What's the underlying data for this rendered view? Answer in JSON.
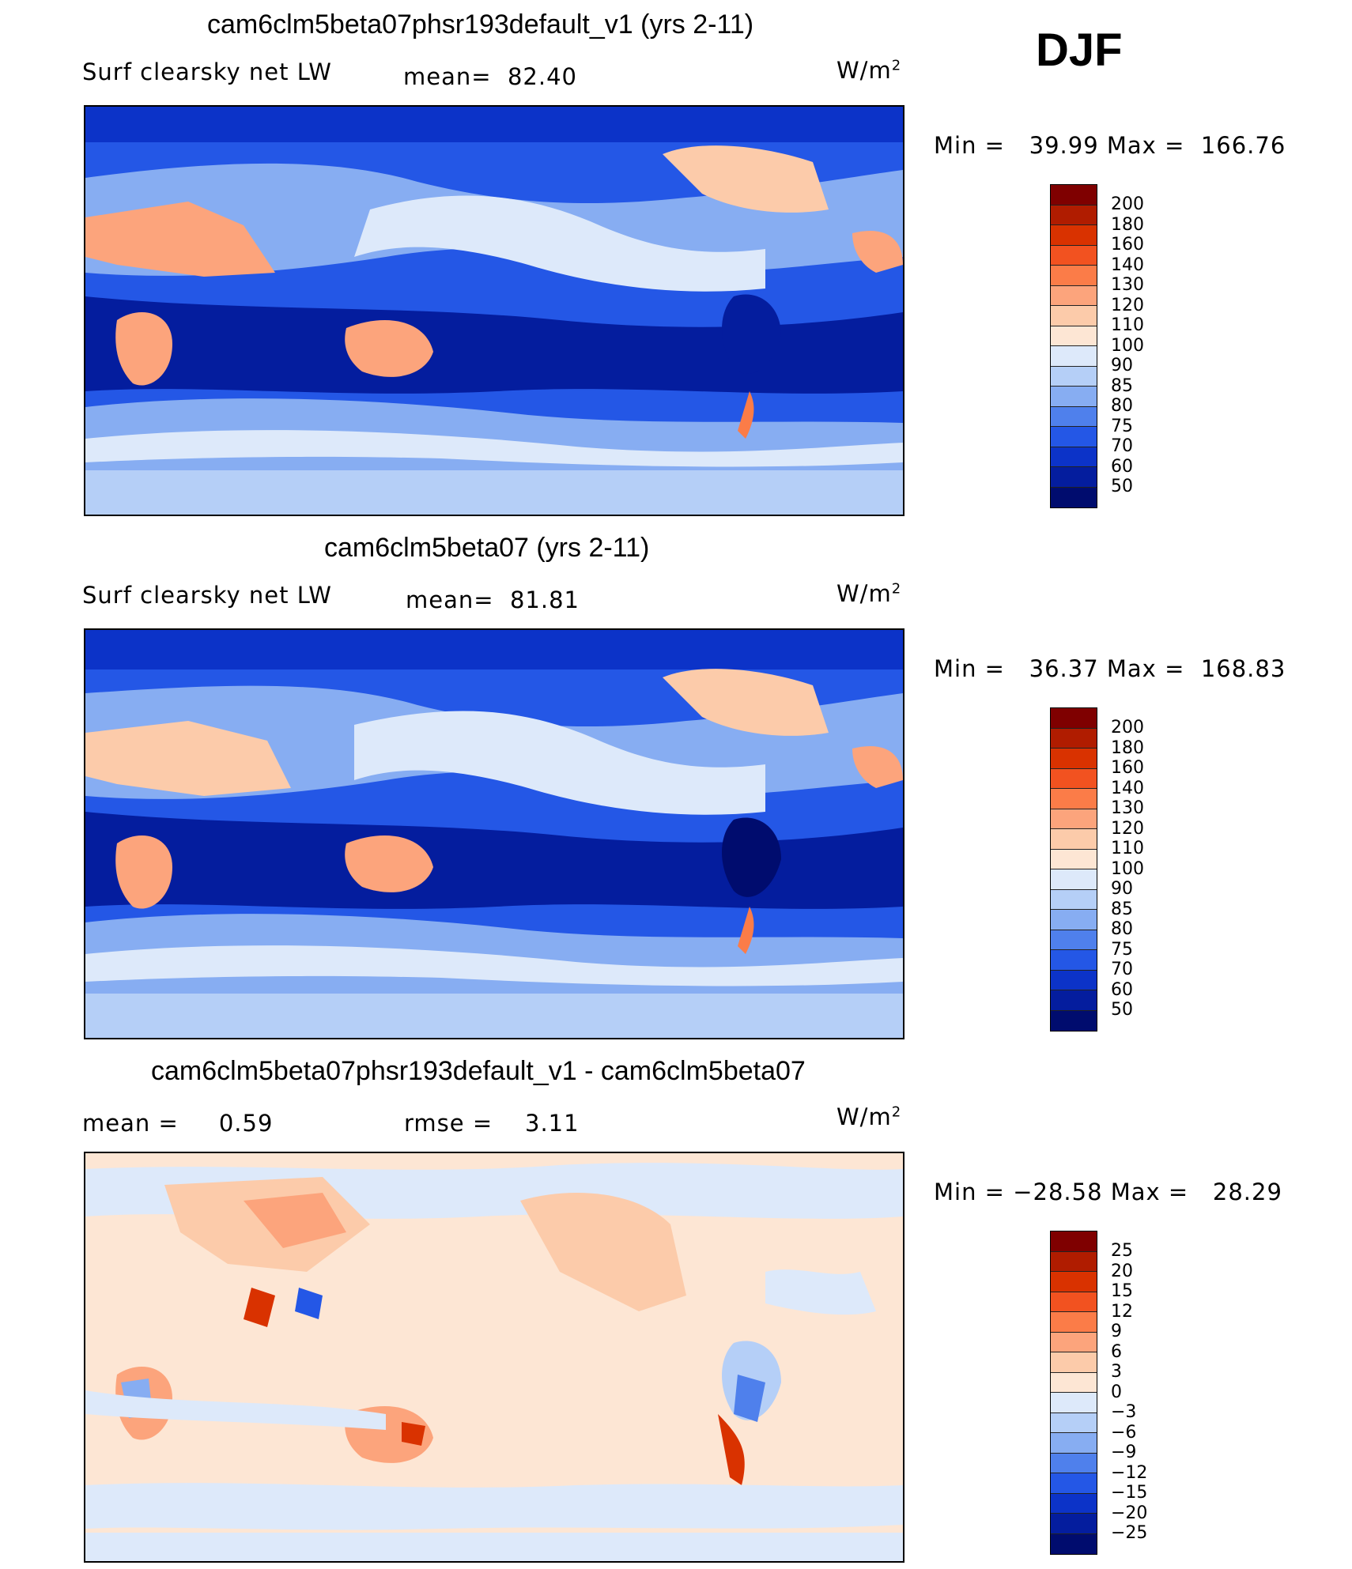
{
  "season": "DJF",
  "units_base": "W/m",
  "units_exp": "2",
  "panels": [
    {
      "title": "cam6clm5beta07phsr193default_v1 (yrs 2-11)",
      "left_label": "Surf clearsky net LW",
      "stat_label": "mean=",
      "stat_value": "82.40",
      "min_label": "Min =",
      "min_value": "39.99",
      "max_label": "Max =",
      "max_value": "166.76",
      "levels": [
        "200",
        "180",
        "160",
        "140",
        "130",
        "120",
        "110",
        "100",
        "90",
        "85",
        "80",
        "75",
        "70",
        "60",
        "50"
      ]
    },
    {
      "title": "cam6clm5beta07 (yrs 2-11)",
      "left_label": "Surf clearsky net LW",
      "stat_label": "mean=",
      "stat_value": "81.81",
      "min_label": "Min =",
      "min_value": "36.37",
      "max_label": "Max =",
      "max_value": "168.83",
      "levels": [
        "200",
        "180",
        "160",
        "140",
        "130",
        "120",
        "110",
        "100",
        "90",
        "85",
        "80",
        "75",
        "70",
        "60",
        "50"
      ]
    },
    {
      "title": "cam6clm5beta07phsr193default_v1 - cam6clm5beta07",
      "mean_label": "mean =",
      "mean_value": "0.59",
      "rmse_label": "rmse =",
      "rmse_value": "3.11",
      "min_label": "Min =",
      "min_value": "−28.58",
      "max_label": "Max =",
      "max_value": "28.29",
      "levels": [
        "25",
        "20",
        "15",
        "12",
        "9",
        "6",
        "3",
        "0",
        "−3",
        "−6",
        "−9",
        "−12",
        "−15",
        "−20",
        "−25"
      ]
    }
  ],
  "colors": {
    "abs_scale": [
      "#7f0000",
      "#b01c00",
      "#d93200",
      "#f25220",
      "#fb7c48",
      "#fca47c",
      "#fccbaa",
      "#fde6d4",
      "#dde9fa",
      "#b5cff7",
      "#87adf2",
      "#4f80ec",
      "#2457e6",
      "#0c33c8",
      "#041d9e",
      "#000c6e"
    ],
    "diff_scale": [
      "#7f0000",
      "#b01c00",
      "#d93200",
      "#f25220",
      "#fb7c48",
      "#fca47c",
      "#fccbaa",
      "#fde6d4",
      "#dde9fa",
      "#b5cff7",
      "#87adf2",
      "#4f80ec",
      "#2457e6",
      "#0c33c8",
      "#041d9e",
      "#000c6e"
    ]
  }
}
